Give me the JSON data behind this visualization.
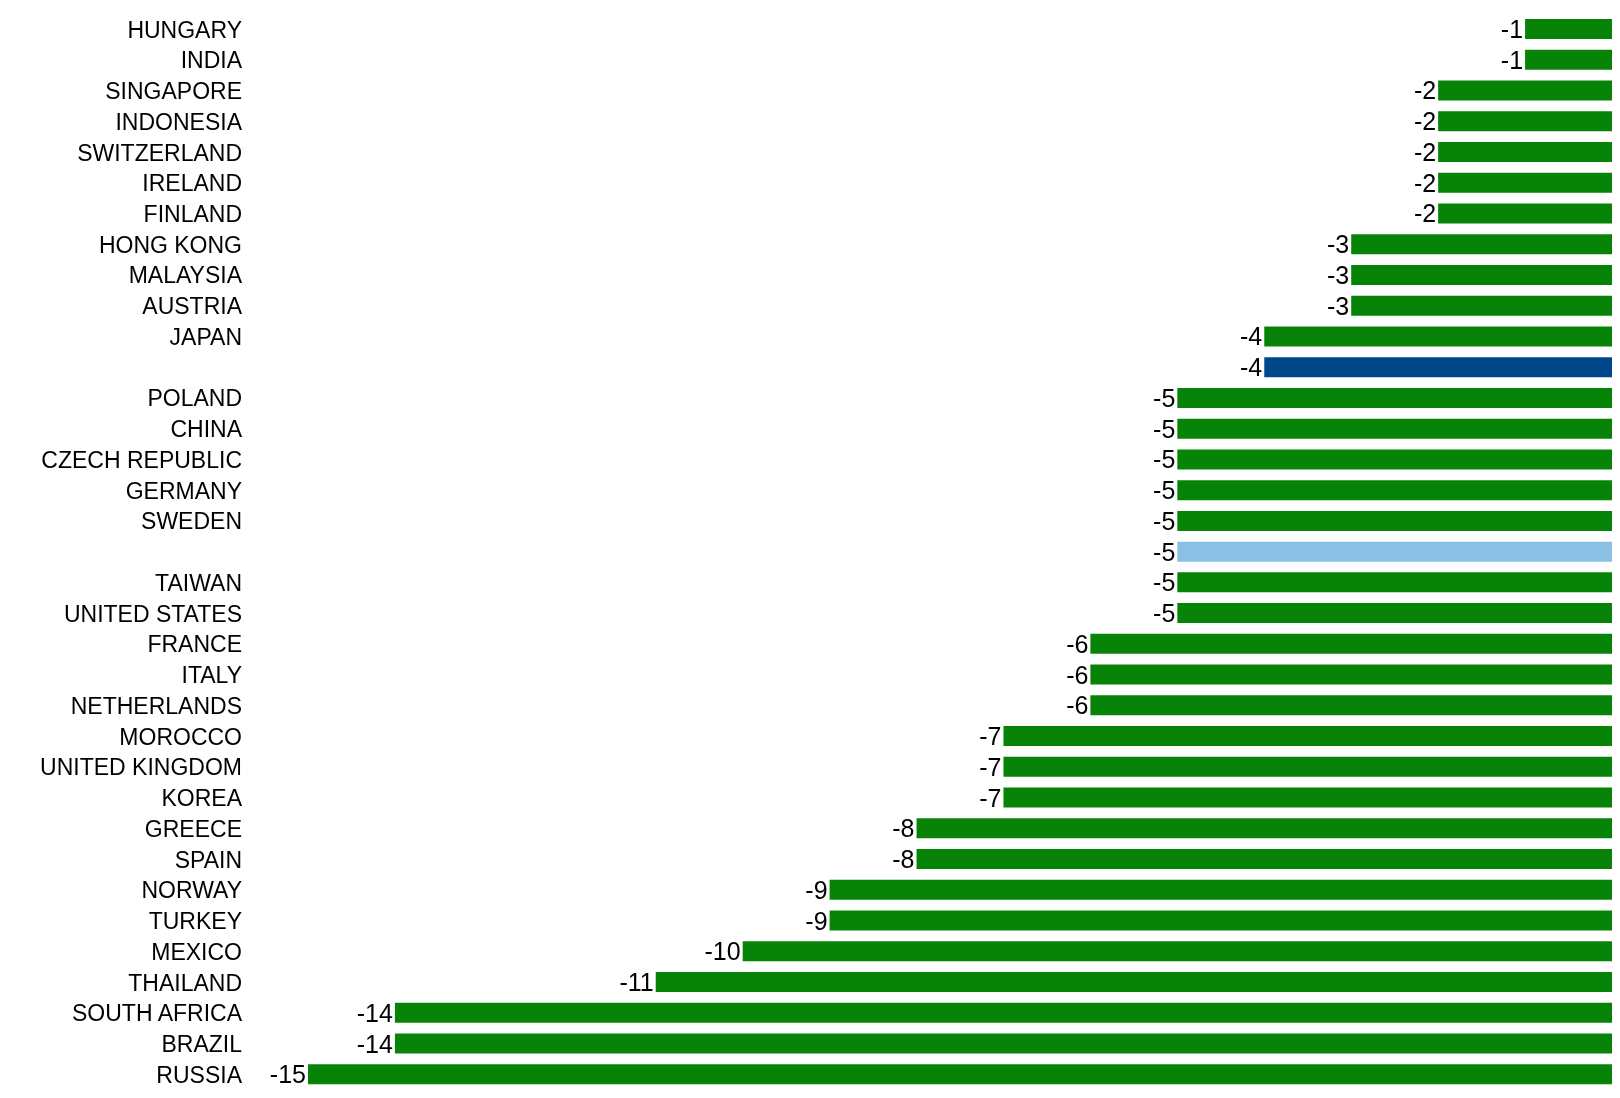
{
  "chart_data": {
    "type": "bar",
    "orientation": "horizontal",
    "tick_labels": "y",
    "data_labels": true,
    "categories": [
      "HUNGARY",
      "INDIA",
      "SINGAPORE",
      "INDONESIA",
      "SWITZERLAND",
      "IRELAND",
      "FINLAND",
      "HONG KONG",
      "MALAYSIA",
      "AUSTRIA",
      "JAPAN",
      null,
      "POLAND",
      "CHINA",
      "CZECH REPUBLIC",
      "GERMANY",
      "SWEDEN",
      null,
      "TAIWAN",
      "UNITED STATES",
      "FRANCE",
      "ITALY",
      "NETHERLANDS",
      "MOROCCO",
      "UNITED KINGDOM",
      "KOREA",
      "GREECE",
      "SPAIN",
      "NORWAY",
      "TURKEY",
      "MEXICO",
      "THAILAND",
      "SOUTH AFRICA",
      "BRAZIL",
      "RUSSIA"
    ],
    "values": [
      -1,
      -1,
      -2,
      -2,
      -2,
      -2,
      -2,
      -3,
      -3,
      -3,
      -4,
      -4,
      -5,
      -5,
      -5,
      -5,
      -5,
      -5,
      -5,
      -5,
      -6,
      -6,
      -6,
      -7,
      -7,
      -7,
      -8,
      -8,
      -9,
      -9,
      -10,
      -11,
      -14,
      -14,
      -15
    ],
    "colors": [
      "#078407",
      "#078407",
      "#078407",
      "#078407",
      "#078407",
      "#078407",
      "#078407",
      "#078407",
      "#078407",
      "#078407",
      "#078407",
      "#00468b",
      "#078407",
      "#078407",
      "#078407",
      "#078407",
      "#078407",
      "#8ac0e4",
      "#078407",
      "#078407",
      "#078407",
      "#078407",
      "#078407",
      "#078407",
      "#078407",
      "#078407",
      "#078407",
      "#078407",
      "#078407",
      "#078407",
      "#078407",
      "#078407",
      "#078407",
      "#078407",
      "#078407"
    ]
  }
}
